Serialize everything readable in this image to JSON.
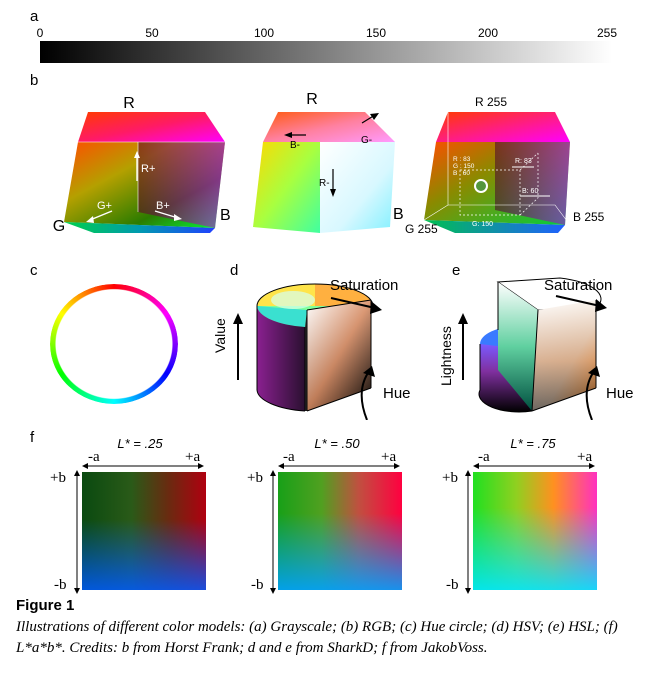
{
  "panels": {
    "a": {
      "letter": "a",
      "ticks": [
        "0",
        "50",
        "100",
        "150",
        "200",
        "255"
      ]
    },
    "b": {
      "letter": "b",
      "cube1": {
        "R": "R",
        "G": "G",
        "B": "B",
        "r_plus": "R+",
        "g_plus": "G+",
        "b_plus": "B+"
      },
      "cube2": {
        "R": "R",
        "B": "B",
        "b_minus": "B-",
        "g_minus": "G-",
        "r_minus": "R-"
      },
      "cube3": {
        "r255": "R 255",
        "g255": "G 255",
        "b255": "B 255",
        "rgb_r": "R : 83",
        "rgb_g": "G : 150",
        "rgb_b": "B : 60",
        "r83": "R: 83",
        "b60": "B: 60",
        "g150": "G: 150"
      }
    },
    "c": {
      "letter": "c"
    },
    "d": {
      "letter": "d",
      "saturation": "Saturation",
      "value": "Value",
      "hue": "Hue"
    },
    "e": {
      "letter": "e",
      "saturation": "Saturation",
      "lightness": "Lightness",
      "hue": "Hue"
    },
    "f": {
      "letter": "f",
      "plots": [
        {
          "title": "L* = .25",
          "neg_a": "-a",
          "pos_a": "+a",
          "pos_b": "+b",
          "neg_b": "-b"
        },
        {
          "title": "L* = .50",
          "neg_a": "-a",
          "pos_a": "+a",
          "pos_b": "+b",
          "neg_b": "-b"
        },
        {
          "title": "L* = .75",
          "neg_a": "-a",
          "pos_a": "+a",
          "pos_b": "+b",
          "neg_b": "-b"
        }
      ]
    }
  },
  "caption": {
    "title": "Figure 1",
    "body": "Illustrations of different color models: (a) Grayscale; (b) RGB; (c) Hue circle; (d) HSV; (e) HSL; (f) L*a*b*. Credits: b from Horst Frank; d and e from SharkD; f from JakobVoss."
  }
}
